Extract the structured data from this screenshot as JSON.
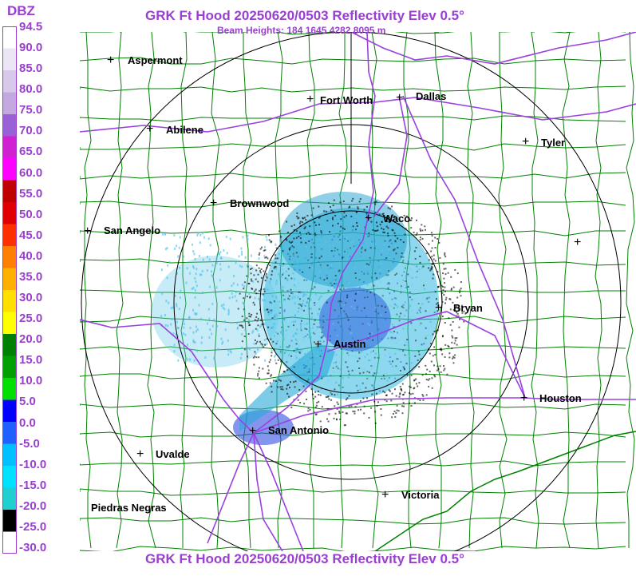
{
  "header": {
    "title": "GRK Ft Hood 20250620/0503 Reflectivity Elev 0.5°",
    "beam_heights": "Beam Heights: 184 1645 4282 8095 m",
    "footer_title": "GRK Ft Hood 20250620/0503 Reflectivity Elev 0.5°"
  },
  "legend": {
    "unit": "DBZ",
    "ticks": [
      "94.5",
      "90.0",
      "85.0",
      "80.0",
      "75.0",
      "70.0",
      "65.0",
      "60.0",
      "55.0",
      "50.0",
      "45.0",
      "40.0",
      "35.0",
      "30.0",
      "25.0",
      "20.0",
      "15.0",
      "10.0",
      "5.0",
      "0.0",
      "-5.0",
      "-10.0",
      "-15.0",
      "-20.0",
      "-25.0",
      "-30.0"
    ],
    "colors": [
      "#ffffff",
      "#ece6f4",
      "#d8c8ea",
      "#c4a8e0",
      "#9a60d8",
      "#d020d0",
      "#ff00ff",
      "#c00000",
      "#e00000",
      "#ff3000",
      "#ff8000",
      "#ffb000",
      "#ffe000",
      "#ffff00",
      "#008000",
      "#00a000",
      "#00e000",
      "#0000ff",
      "#2060ff",
      "#00c0ff",
      "#00e0ff",
      "#20d0d0",
      "#000000",
      "#ffffff"
    ]
  },
  "cities": {
    "aspermont": "Aspermont",
    "fort_worth": "Fort Worth",
    "dallas": "Dallas",
    "abilene": "Abilene",
    "tyler": "Tyler",
    "brownwood": "Brownwood",
    "waco": "Waco",
    "san_angelo": "San Angelo",
    "bryan": "Bryan",
    "austin": "Austin",
    "houston": "Houston",
    "san_antonio": "San Antonio",
    "uvalde": "Uvalde",
    "victoria": "Victoria",
    "piedras_negras": "Piedras Negras"
  }
}
